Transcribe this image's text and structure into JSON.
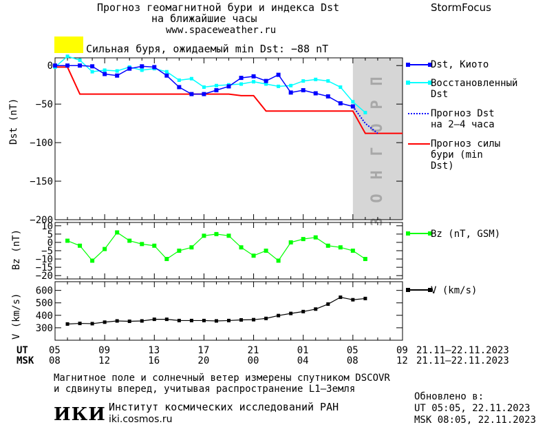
{
  "header": {
    "title_line1": "Прогноз геомагнитной бури и индекса Dst",
    "title_line2": "на ближайшие часы",
    "site": "www.spaceweather.ru",
    "brand": "StormFocus"
  },
  "alert": {
    "text": "Сильная буря, ожидаемый min Dst: −88 nT",
    "color": "#ffff00"
  },
  "forecast_band_label": "ПРОГНОЗ",
  "axis_rows": {
    "ut_label": "UT",
    "msk_label": "MSK",
    "ut_ticks": [
      "05",
      "09",
      "13",
      "17",
      "21",
      "01",
      "05",
      "09"
    ],
    "msk_ticks": [
      "08",
      "12",
      "16",
      "20",
      "00",
      "04",
      "08",
      "12"
    ],
    "ut_range": "21.11–22.11.2023",
    "msk_range": "21.11–22.11.2023"
  },
  "footer": {
    "note_line1": "Магнитное поле и солнечный ветер измерены спутником DSCOVR",
    "note_line2": "и сдвинуты вперед, учитывая распространение L1–Земля",
    "logo": "ИКИ",
    "institute": "Институт космических исследований РАН",
    "institute_url": "iki.cosmos.ru",
    "updated_label": "Обновлено в:",
    "updated_ut": "UT  05:05, 22.11.2023",
    "updated_msk": "MSK 08:05, 22.11.2023"
  },
  "chart_data": [
    {
      "type": "line",
      "ylabel": "Dst (nT)",
      "ylim": [
        -200,
        10
      ],
      "yticks": [
        0,
        -50,
        -100,
        -150,
        -200
      ],
      "xlim_hours": [
        5,
        33
      ],
      "forecast_span_hours": [
        29,
        33
      ],
      "series": [
        {
          "name": "Dst, Киото",
          "color": "#0000ff",
          "x": [
            5,
            6,
            7,
            8,
            9,
            10,
            11,
            12,
            13,
            14,
            15,
            16,
            17,
            18,
            19,
            20,
            21,
            22,
            23,
            24,
            25,
            26,
            27,
            28,
            29
          ],
          "y": [
            0,
            0,
            0,
            -1,
            -11,
            -13,
            -4,
            -1,
            -2,
            -13,
            -28,
            -37,
            -37,
            -32,
            -27,
            -16,
            -14,
            -20,
            -12,
            -35,
            -32,
            -36,
            -40,
            -49,
            -53
          ]
        },
        {
          "name": "Восстановленный Dst",
          "color": "#00ffff",
          "x": [
            5,
            6,
            7,
            8,
            9,
            10,
            11,
            12,
            13,
            14,
            15,
            16,
            17,
            18,
            19,
            20,
            21,
            22,
            23,
            24,
            25,
            26,
            27,
            28,
            29,
            30
          ],
          "y": [
            -2,
            12,
            7,
            -8,
            -6,
            -7,
            -2,
            -6,
            -4,
            -8,
            -19,
            -17,
            -28,
            -26,
            -25,
            -24,
            -21,
            -24,
            -27,
            -26,
            -20,
            -18,
            -20,
            -28,
            -47,
            -61
          ]
        },
        {
          "name": "Прогноз Dst на 2–4 часа",
          "color": "#0000ff",
          "style": "dotted",
          "x": [
            29,
            30,
            31
          ],
          "y": [
            -53,
            -75,
            -88
          ]
        },
        {
          "name": "Прогноз силы бури (min Dst)",
          "color": "#ff0000",
          "x": [
            5,
            6,
            7,
            15,
            16,
            19,
            20,
            21,
            22,
            29,
            30,
            31,
            32,
            33
          ],
          "y": [
            -2,
            -2,
            -37,
            -37,
            -37,
            -37,
            -39,
            -39,
            -59,
            -59,
            -88,
            -88,
            -88,
            -88
          ],
          "step_until_hour": 6
        }
      ]
    },
    {
      "type": "line",
      "ylabel": "Bz (nT)",
      "ylim": [
        -22,
        12
      ],
      "yticks": [
        10,
        5,
        0,
        -5,
        -10,
        -15,
        -20
      ],
      "series": [
        {
          "name": "Bz (nT, GSM)",
          "color": "#00ff00",
          "x": [
            6,
            7,
            8,
            9,
            10,
            11,
            12,
            13,
            14,
            15,
            16,
            17,
            18,
            19,
            20,
            21,
            22,
            23,
            24,
            25,
            26,
            27,
            28,
            29,
            30
          ],
          "y": [
            1,
            -2,
            -11,
            -4,
            6,
            1,
            -1,
            -2,
            -10,
            -5,
            -3,
            4,
            5,
            4,
            -3,
            -8,
            -5,
            -11,
            0,
            2,
            3,
            -2,
            -3,
            -5,
            -10
          ]
        }
      ]
    },
    {
      "type": "line",
      "ylabel": "V (km/s)",
      "ylim": [
        200,
        670
      ],
      "yticks": [
        600,
        500,
        400,
        300
      ],
      "series": [
        {
          "name": "V (km/s)",
          "color": "#000000",
          "x": [
            6,
            7,
            8,
            9,
            10,
            11,
            12,
            13,
            14,
            15,
            16,
            17,
            18,
            19,
            20,
            21,
            22,
            23,
            24,
            25,
            26,
            27,
            28,
            29,
            30
          ],
          "y": [
            330,
            335,
            333,
            345,
            355,
            352,
            355,
            368,
            368,
            358,
            358,
            358,
            355,
            358,
            363,
            365,
            375,
            398,
            415,
            430,
            450,
            490,
            545,
            525,
            535
          ]
        }
      ]
    }
  ]
}
